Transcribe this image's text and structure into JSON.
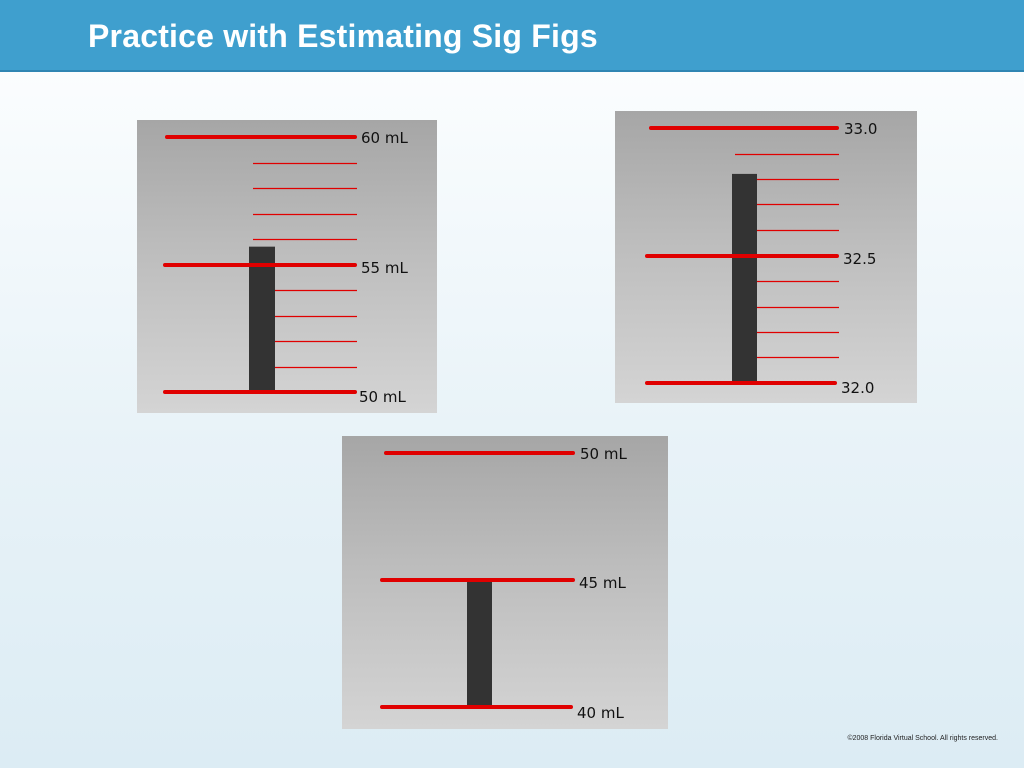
{
  "slide": {
    "title": "Practice with Estimating Sig Figs",
    "copyright": "©2008 Florida Virtual School. All rights reserved."
  },
  "colors": {
    "header": "#3f9fce",
    "line": "#e00000",
    "column": "#333333",
    "panel": "#bdbdbd"
  },
  "graduated_cylinders": [
    {
      "name": "cylinder-1",
      "labels": [
        "60 mL",
        "55 mL",
        "50 mL"
      ],
      "scale_min": 50,
      "scale_max": 60,
      "minor_divisions": 10,
      "liquid_level": 55.7
    },
    {
      "name": "cylinder-2",
      "labels": [
        "33.0",
        "32.5",
        "32.0"
      ],
      "scale_min": 32.0,
      "scale_max": 33.0,
      "minor_divisions": 10,
      "liquid_level": 32.82
    },
    {
      "name": "cylinder-3",
      "labels": [
        "50 mL",
        "45 mL",
        "40 mL"
      ],
      "scale_min": 40,
      "scale_max": 50,
      "minor_divisions": 2,
      "liquid_level": 45.0
    }
  ]
}
